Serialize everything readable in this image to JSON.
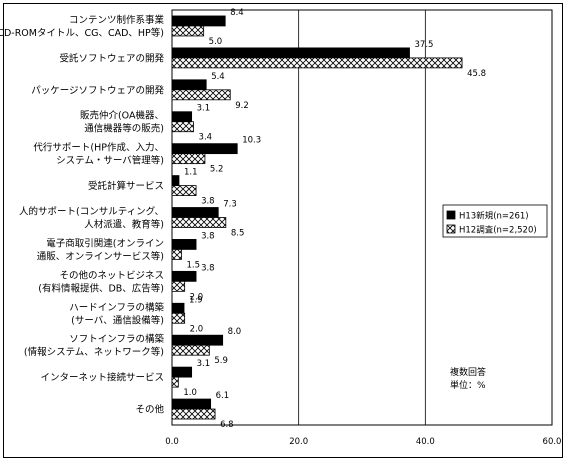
{
  "chart_data": {
    "type": "bar",
    "orientation": "horizontal",
    "categories": [
      [
        "コンテンツ制作系事業",
        "(CD-ROMタイトル、CG、CAD、HP等)"
      ],
      [
        "受託ソフトウェアの開発"
      ],
      [
        "パッケージソフトウェアの開発"
      ],
      [
        "販売仲介(OA機器、",
        "通信機器等の販売)"
      ],
      [
        "代行サポート(HP作成、入力、",
        "システム・サーバ管理等)"
      ],
      [
        "受託計算サービス"
      ],
      [
        "人的サポート(コンサルティング、",
        "人材派遣、教育等)"
      ],
      [
        "電子商取引関連(オンライン",
        "通販、オンラインサービス等)"
      ],
      [
        "その他のネットビジネス",
        "(有料情報提供、DB、広告等)"
      ],
      [
        "ハードインフラの構築",
        "(サーバ、通信設備等)"
      ],
      [
        "ソフトインフラの構築",
        "(情報システム、ネットワーク等)"
      ],
      [
        "インターネット接続サービス"
      ],
      [
        "その他"
      ]
    ],
    "series": [
      {
        "name": "H13新規(n=261)",
        "pattern": "solid",
        "color": "#000000",
        "values": [
          8.4,
          37.5,
          5.4,
          3.1,
          10.3,
          1.1,
          7.3,
          3.8,
          3.8,
          1.9,
          8.0,
          3.1,
          6.1
        ],
        "labels": [
          "8.4",
          "37.5",
          "5.4",
          "3.1",
          "10.3",
          "1.1",
          "7.3",
          "3.8",
          "3.8",
          "1.9",
          "8.0",
          "3.1",
          "6.1"
        ]
      },
      {
        "name": "H12調査(n=2,520)",
        "pattern": "crosshatch",
        "color": "#000000",
        "values": [
          5.0,
          45.8,
          9.2,
          3.4,
          5.2,
          3.8,
          8.5,
          1.5,
          2.0,
          2.0,
          5.9,
          1.0,
          6.8
        ],
        "labels": [
          "5.0",
          "45.8",
          "9.2",
          "3.4",
          "5.2",
          "3.8",
          "8.5",
          "1.5",
          "2.0",
          "2.0",
          "5.9",
          "1.0",
          "6.8"
        ]
      }
    ],
    "xlim": [
      0,
      60
    ],
    "xticks": [
      0,
      20,
      40,
      60
    ],
    "xtick_labels": [
      "0.0",
      "20.0",
      "40.0",
      "60.0"
    ],
    "grid": true,
    "legend_position": "right",
    "notes": [
      "複数回答",
      "単位：%"
    ]
  }
}
